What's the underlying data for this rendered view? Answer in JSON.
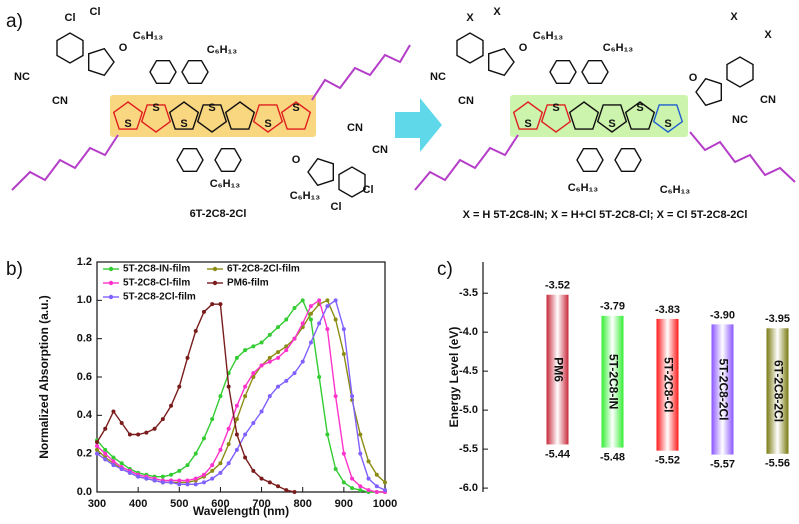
{
  "panel_a": {
    "label": "a)",
    "left": {
      "name": "6T-2C8-2Cl",
      "atoms": [
        "Cl",
        "Cl",
        "NC",
        "CN",
        "O",
        "C₆H₁₃",
        "C₆H₁₃",
        "S",
        "S",
        "S",
        "S",
        "S",
        "S",
        "O",
        "CN",
        "CN",
        "C₆H₁₃",
        "C₆H₁₃",
        "Cl",
        "Cl"
      ]
    },
    "right": {
      "caption": "X = H  5T-2C8-IN; X = H+Cl 5T-2C8-Cl;  X = Cl 5T-2C8-2Cl",
      "atoms": [
        "X",
        "X",
        "NC",
        "CN",
        "O",
        "C₆H₁₃",
        "C₆H₁₃",
        "S",
        "S",
        "S",
        "S",
        "S",
        "X",
        "X",
        "O",
        "CN",
        "NC",
        "C₆H₁₃",
        "C₆H₁₃"
      ]
    }
  },
  "chart_data": [
    {
      "type": "line",
      "panel_label": "b)",
      "x_label": "Wavelength (nm)",
      "y_label": "Normalized Absorption (a.u.)",
      "xlim": [
        300,
        1000
      ],
      "xticks": [
        300,
        400,
        500,
        600,
        700,
        800,
        900,
        1000
      ],
      "ylim": [
        0,
        1.2
      ],
      "yticks": [
        {
          "value": 0,
          "label": "0.0"
        },
        0.2,
        0.4,
        0.6,
        0.8,
        {
          "value": 1,
          "label": "1.0"
        },
        1.2
      ],
      "series": [
        {
          "name": "5T-2C8-IN-film",
          "color": "#33cc33",
          "x": [
            300,
            320,
            340,
            360,
            380,
            400,
            420,
            440,
            460,
            480,
            500,
            520,
            540,
            560,
            580,
            600,
            620,
            640,
            660,
            680,
            700,
            720,
            740,
            760,
            780,
            800,
            820,
            840,
            860,
            880,
            900,
            920,
            940,
            960,
            980,
            1000
          ],
          "values": [
            0.27,
            0.22,
            0.18,
            0.15,
            0.12,
            0.1,
            0.09,
            0.08,
            0.08,
            0.09,
            0.11,
            0.14,
            0.2,
            0.28,
            0.38,
            0.5,
            0.62,
            0.7,
            0.74,
            0.76,
            0.78,
            0.82,
            0.86,
            0.9,
            0.96,
            1.0,
            0.9,
            0.6,
            0.3,
            0.12,
            0.05,
            0.02,
            0.01,
            0,
            0,
            0
          ]
        },
        {
          "name": "6T-2C8-2Cl-film",
          "color": "#8c8c14",
          "x": [
            300,
            320,
            340,
            360,
            380,
            400,
            420,
            440,
            460,
            480,
            500,
            520,
            540,
            560,
            580,
            600,
            620,
            640,
            660,
            680,
            700,
            720,
            740,
            760,
            780,
            800,
            820,
            840,
            860,
            880,
            900,
            920,
            940,
            960,
            980,
            1000
          ],
          "values": [
            0.22,
            0.18,
            0.15,
            0.12,
            0.1,
            0.08,
            0.07,
            0.06,
            0.05,
            0.05,
            0.05,
            0.05,
            0.06,
            0.08,
            0.11,
            0.15,
            0.25,
            0.38,
            0.5,
            0.6,
            0.66,
            0.7,
            0.73,
            0.76,
            0.8,
            0.86,
            0.93,
            0.98,
            1.0,
            0.9,
            0.72,
            0.48,
            0.3,
            0.16,
            0.09,
            0.05
          ]
        },
        {
          "name": "5T-2C8-Cl-film",
          "color": "#ff33cc",
          "x": [
            300,
            320,
            340,
            360,
            380,
            400,
            420,
            440,
            460,
            480,
            500,
            520,
            540,
            560,
            580,
            600,
            620,
            640,
            660,
            680,
            700,
            720,
            740,
            760,
            780,
            800,
            820,
            840,
            860,
            880,
            900,
            920,
            940,
            960,
            980,
            1000
          ],
          "values": [
            0.24,
            0.2,
            0.16,
            0.13,
            0.11,
            0.09,
            0.08,
            0.07,
            0.06,
            0.06,
            0.06,
            0.06,
            0.07,
            0.09,
            0.14,
            0.22,
            0.33,
            0.45,
            0.55,
            0.62,
            0.66,
            0.68,
            0.7,
            0.74,
            0.8,
            0.88,
            0.97,
            1.0,
            0.85,
            0.5,
            0.2,
            0.07,
            0.03,
            0.01,
            0,
            0
          ]
        },
        {
          "name": "5T-2C8-2Cl-film",
          "color": "#8060ff",
          "x": [
            300,
            320,
            340,
            360,
            380,
            400,
            420,
            440,
            460,
            480,
            500,
            520,
            540,
            560,
            580,
            600,
            620,
            640,
            660,
            680,
            700,
            720,
            740,
            760,
            780,
            800,
            820,
            840,
            860,
            880,
            900,
            920,
            940,
            960,
            980,
            1000
          ],
          "values": [
            0.2,
            0.17,
            0.14,
            0.12,
            0.1,
            0.08,
            0.07,
            0.06,
            0.05,
            0.05,
            0.04,
            0.04,
            0.04,
            0.05,
            0.07,
            0.1,
            0.15,
            0.22,
            0.3,
            0.36,
            0.42,
            0.5,
            0.55,
            0.58,
            0.62,
            0.68,
            0.78,
            0.88,
            0.97,
            1.0,
            0.85,
            0.5,
            0.2,
            0.07,
            0.03,
            0.01
          ]
        },
        {
          "name": "PM6-film",
          "color": "#7a1c1c",
          "x": [
            300,
            320,
            340,
            360,
            380,
            400,
            420,
            440,
            460,
            480,
            500,
            520,
            540,
            560,
            580,
            600,
            620,
            640,
            660,
            680,
            700,
            720,
            740,
            760,
            780
          ],
          "values": [
            0.26,
            0.33,
            0.42,
            0.36,
            0.3,
            0.3,
            0.31,
            0.33,
            0.38,
            0.45,
            0.55,
            0.7,
            0.84,
            0.94,
            0.98,
            0.98,
            0.55,
            0.3,
            0.18,
            0.11,
            0.07,
            0.05,
            0.03,
            0.01,
            0
          ]
        }
      ]
    },
    {
      "type": "range-bar",
      "panel_label": "c)",
      "y_label": "Energy Level (eV)",
      "ylim": [
        -6.05,
        -3.1
      ],
      "yticks": [
        -3.5,
        {
          "value": -4,
          "label": "-4.0"
        },
        -4.5,
        {
          "value": -5,
          "label": "-5.0"
        },
        -5.5,
        {
          "value": -6,
          "label": "-6.0"
        }
      ],
      "categories": [
        "PM6",
        "5T-2C8-IN",
        "5T-2C8-Cl",
        "5T-2C8-2Cl",
        "6T-2C8-2Cl"
      ],
      "colors": [
        "#c8283a",
        "#33ee33",
        "#ff1a1a",
        "#8a55ff",
        "#7a7a10"
      ],
      "lumo": {
        "values": [
          -3.52,
          -3.79,
          -3.83,
          -3.9,
          -3.95
        ],
        "value_labels": [
          "-3.52",
          "-3.79",
          "-3.83",
          "-3.90",
          "-3.95"
        ]
      },
      "homo": {
        "values": [
          -5.44,
          -5.48,
          -5.52,
          -5.57,
          -5.56
        ],
        "value_labels": [
          "-5.44",
          "-5.48",
          "-5.52",
          "-5.57",
          "-5.56"
        ]
      }
    }
  ]
}
